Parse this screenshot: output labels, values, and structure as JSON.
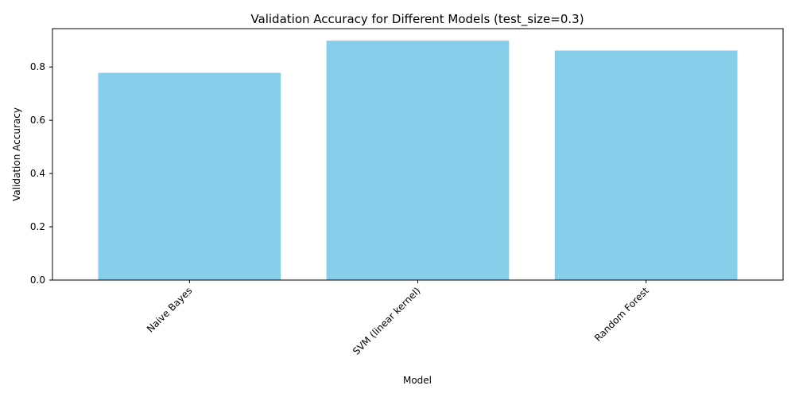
{
  "colors": {
    "bar": "#87ceeb",
    "axis": "#000000",
    "background": "#ffffff"
  },
  "chart_data": {
    "type": "bar",
    "title": "Validation Accuracy for Different Models (test_size=0.3)",
    "xlabel": "Model",
    "ylabel": "Validation Accuracy",
    "categories": [
      "Naive Bayes",
      "SVM (linear kernel)",
      "Random Forest"
    ],
    "values": [
      0.778,
      0.899,
      0.862
    ],
    "ylim": [
      0,
      0.944
    ],
    "yticks": [
      0.0,
      0.2,
      0.4,
      0.6,
      0.8
    ],
    "ytick_labels": [
      "0.0",
      "0.2",
      "0.4",
      "0.6",
      "0.8"
    ],
    "xtick_rotation_deg": 45,
    "grid": false,
    "legend": "none"
  }
}
